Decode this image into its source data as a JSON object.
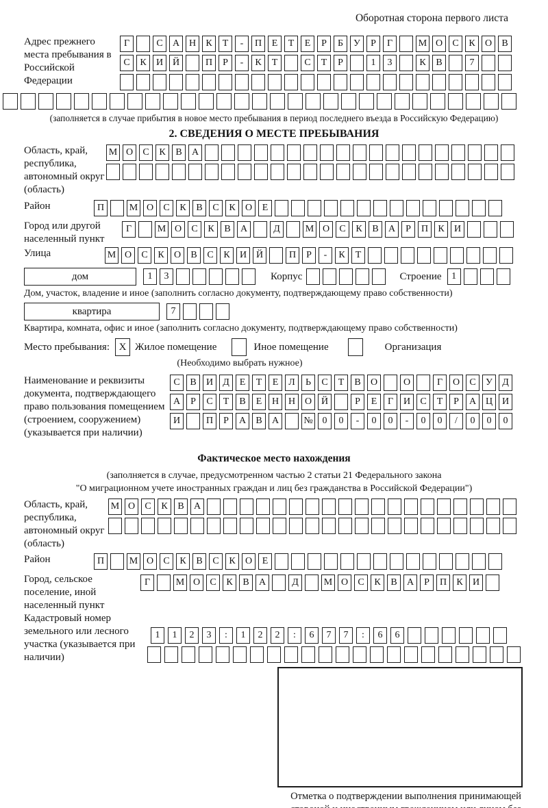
{
  "page_header": "Оборотная сторона первого листа",
  "prev_address": {
    "label": "Адрес прежнего места пребывания в Российской Федерации",
    "row1": [
      "Г",
      "",
      "С",
      "А",
      "Н",
      "К",
      "Т",
      "-",
      "П",
      "Е",
      "Т",
      "Е",
      "Р",
      "Б",
      "У",
      "Р",
      "Г",
      "",
      "М",
      "О",
      "С",
      "К",
      "О",
      "В"
    ],
    "row2": [
      "С",
      "К",
      "И",
      "Й",
      "",
      "П",
      "Р",
      "-",
      "К",
      "Т",
      "",
      "С",
      "Т",
      "Р",
      "",
      "1",
      "3",
      "",
      "К",
      "В",
      "",
      "7",
      "",
      ""
    ],
    "row3": [
      "",
      "",
      "",
      "",
      "",
      "",
      "",
      "",
      "",
      "",
      "",
      "",
      "",
      "",
      "",
      "",
      "",
      "",
      "",
      "",
      "",
      "",
      "",
      ""
    ],
    "row_full": [
      "",
      "",
      "",
      "",
      "",
      "",
      "",
      "",
      "",
      "",
      "",
      "",
      "",
      "",
      "",
      "",
      "",
      "",
      "",
      "",
      "",
      "",
      "",
      "",
      "",
      "",
      "",
      "",
      ""
    ],
    "caption": "(заполняется в случае прибытия в новое место пребывания в период последнего въезда в Российскую Федерацию)"
  },
  "section2": {
    "title": "2. СВЕДЕНИЯ О МЕСТЕ ПРЕБЫВАНИЯ",
    "region": {
      "label": "Область, край, республика, автономный округ (область)",
      "row1": [
        "М",
        "О",
        "С",
        "К",
        "В",
        "А",
        "",
        "",
        "",
        "",
        "",
        "",
        "",
        "",
        "",
        "",
        "",
        "",
        "",
        "",
        "",
        "",
        "",
        "",
        ""
      ],
      "row2": [
        "",
        "",
        "",
        "",
        "",
        "",
        "",
        "",
        "",
        "",
        "",
        "",
        "",
        "",
        "",
        "",
        "",
        "",
        "",
        "",
        "",
        "",
        "",
        "",
        ""
      ]
    },
    "district": {
      "label": "Район",
      "cells": [
        "П",
        "",
        "М",
        "О",
        "С",
        "К",
        "В",
        "С",
        "К",
        "О",
        "Е",
        "",
        "",
        "",
        "",
        "",
        "",
        "",
        "",
        "",
        "",
        "",
        "",
        "",
        ""
      ]
    },
    "city": {
      "label": "Город или другой населенный пункт",
      "cells": [
        "Г",
        "",
        "М",
        "О",
        "С",
        "К",
        "В",
        "А",
        "",
        "Д",
        "",
        "М",
        "О",
        "С",
        "К",
        "В",
        "А",
        "Р",
        "П",
        "К",
        "И",
        "",
        "",
        ""
      ]
    },
    "street": {
      "label": "Улица",
      "cells": [
        "М",
        "О",
        "С",
        "К",
        "О",
        "В",
        "С",
        "К",
        "И",
        "Й",
        "",
        "П",
        "Р",
        "-",
        "К",
        "Т",
        "",
        "",
        "",
        "",
        "",
        "",
        "",
        "",
        ""
      ]
    },
    "house": {
      "box_label": "дом",
      "cells": [
        "1",
        "3",
        "",
        "",
        "",
        "",
        ""
      ],
      "korpus_label": "Корпус",
      "korpus_cells": [
        "",
        "",
        "",
        "",
        ""
      ],
      "stroenie_label": "Строение",
      "stroenie_cells": [
        "1",
        "",
        "",
        ""
      ],
      "caption": "Дом, участок, владение и иное (заполнить согласно документу, подтверждающему право собственности)"
    },
    "apartment": {
      "box_label": "квартира",
      "cells": [
        "7",
        "",
        "",
        ""
      ],
      "caption": "Квартира, комната, офис и иное (заполнить согласно документу, подтверждающему право собственности)"
    },
    "stay_type": {
      "label": "Место пребывания:",
      "options": [
        {
          "label": "Жилое помещение",
          "checked": "X"
        },
        {
          "label": "Иное помещение",
          "checked": ""
        },
        {
          "label": "Организация",
          "checked": ""
        }
      ],
      "note": "(Необходимо выбрать нужное)"
    },
    "document": {
      "label": "Наименование и реквизиты документа, подтверждающего право пользования помещением (строением, сооружением) (указывается при наличии)",
      "row1": [
        "С",
        "В",
        "И",
        "Д",
        "Е",
        "Т",
        "Е",
        "Л",
        "Ь",
        "С",
        "Т",
        "В",
        "О",
        "",
        "О",
        "",
        "Г",
        "О",
        "С",
        "У",
        "Д"
      ],
      "row2": [
        "А",
        "Р",
        "С",
        "Т",
        "В",
        "Е",
        "Н",
        "Н",
        "О",
        "Й",
        "",
        "Р",
        "Е",
        "Г",
        "И",
        "С",
        "Т",
        "Р",
        "А",
        "Ц",
        "И"
      ],
      "row3": [
        "И",
        "",
        "П",
        "Р",
        "А",
        "В",
        "А",
        "",
        "№",
        "0",
        "0",
        "-",
        "0",
        "0",
        "-",
        "0",
        "0",
        "/",
        "0",
        "0",
        "0"
      ]
    }
  },
  "actual_location": {
    "title": "Фактическое место нахождения",
    "caption_line1": "(заполняется в случае, предусмотренном частью 2 статьи 21 Федерального закона",
    "caption_line2": "\"О миграционном учете иностранных граждан и лиц без гражданства в Российской Федерации\")",
    "region": {
      "label": "Область, край, республика, автономный округ (область)",
      "row1": [
        "М",
        "О",
        "С",
        "К",
        "В",
        "А",
        "",
        "",
        "",
        "",
        "",
        "",
        "",
        "",
        "",
        "",
        "",
        "",
        "",
        "",
        "",
        "",
        "",
        "",
        ""
      ],
      "row2": [
        "",
        "",
        "",
        "",
        "",
        "",
        "",
        "",
        "",
        "",
        "",
        "",
        "",
        "",
        "",
        "",
        "",
        "",
        "",
        "",
        "",
        "",
        "",
        "",
        ""
      ]
    },
    "district": {
      "label": "Район",
      "cells": [
        "П",
        "",
        "М",
        "О",
        "С",
        "К",
        "В",
        "С",
        "К",
        "О",
        "Е",
        "",
        "",
        "",
        "",
        "",
        "",
        "",
        "",
        "",
        "",
        "",
        "",
        "",
        ""
      ]
    },
    "city": {
      "label": "Город, сельское поселение, иной населенный пункт",
      "cells": [
        "Г",
        "",
        "М",
        "О",
        "С",
        "К",
        "В",
        "А",
        "",
        "Д",
        "",
        "М",
        "О",
        "С",
        "К",
        "В",
        "А",
        "Р",
        "П",
        "К",
        "И",
        ""
      ]
    },
    "cadastre": {
      "label": "Кадастровый номер земельного или лесного участка (указывается при наличии)",
      "row1": [
        "1",
        "1",
        "2",
        "3",
        ":",
        "1",
        "2",
        "2",
        ":",
        "6",
        "7",
        "7",
        ":",
        "6",
        "6",
        "",
        "",
        "",
        "",
        "",
        ""
      ],
      "row2": [
        "",
        "",
        "",
        "",
        "",
        "",
        "",
        "",
        "",
        "",
        "",
        "",
        "",
        "",
        "",
        "",
        "",
        "",
        "",
        "",
        "",
        ""
      ]
    },
    "stamp_caption": "Отметка о подтверждении выполнения принимающей стороной и иностранным гражданином или лицом без гражданства действий, необходимых для его постановки на учет по месту пребывания"
  }
}
